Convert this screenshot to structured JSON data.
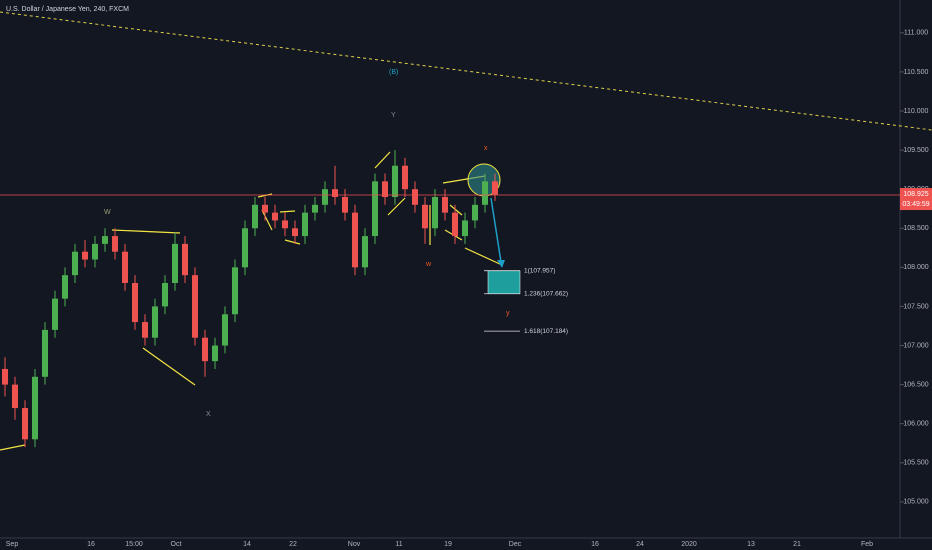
{
  "chart_data": {
    "type": "candlestick",
    "title": "U.S. Dollar / Japanese Yen, 240, FXCM",
    "open": [
      106.7,
      106.5,
      106.2,
      105.8,
      106.6,
      107.2,
      107.6,
      107.9,
      108.2,
      108.1,
      108.3,
      108.4,
      108.2,
      107.8,
      107.3,
      107.1,
      107.5,
      107.8,
      108.3,
      107.9,
      107.1,
      106.8,
      107.0,
      107.4,
      108.0,
      108.5,
      108.8,
      108.7,
      108.6,
      108.5,
      108.4,
      108.7,
      108.8,
      109.0,
      108.9,
      108.7,
      108.0,
      108.4,
      109.1,
      108.9,
      109.3,
      109.0,
      108.8,
      108.5,
      108.9,
      108.7,
      108.4,
      108.6,
      108.8,
      109.1
    ],
    "high": [
      106.85,
      106.6,
      106.3,
      106.7,
      107.3,
      107.7,
      108.0,
      108.3,
      108.35,
      108.4,
      108.5,
      108.5,
      108.3,
      107.9,
      107.4,
      107.6,
      107.9,
      108.45,
      108.4,
      108.0,
      107.2,
      107.1,
      107.5,
      108.1,
      108.6,
      108.9,
      108.9,
      108.8,
      108.7,
      108.6,
      108.8,
      108.9,
      109.1,
      109.3,
      109.0,
      108.8,
      108.5,
      109.2,
      109.2,
      109.5,
      109.4,
      109.1,
      108.9,
      109.0,
      109.0,
      108.8,
      108.7,
      108.9,
      109.2,
      109.2
    ],
    "low": [
      106.35,
      106.05,
      105.7,
      105.7,
      106.5,
      107.1,
      107.5,
      107.8,
      108.0,
      108.0,
      108.2,
      108.1,
      107.7,
      107.2,
      107.0,
      107.0,
      107.4,
      107.7,
      107.8,
      107.0,
      106.6,
      106.7,
      106.9,
      107.3,
      107.9,
      108.4,
      108.6,
      108.5,
      108.4,
      108.3,
      108.3,
      108.6,
      108.7,
      108.8,
      108.6,
      107.9,
      107.9,
      108.3,
      108.8,
      108.8,
      108.9,
      108.7,
      108.3,
      108.4,
      108.6,
      108.3,
      108.3,
      108.5,
      108.7,
      108.85
    ],
    "close": [
      106.5,
      106.2,
      105.8,
      106.6,
      107.2,
      107.6,
      107.9,
      108.2,
      108.1,
      108.3,
      108.4,
      108.2,
      107.8,
      107.3,
      107.1,
      107.5,
      107.8,
      108.3,
      107.9,
      107.1,
      106.8,
      107.0,
      107.4,
      108.0,
      108.5,
      108.8,
      108.7,
      108.6,
      108.5,
      108.4,
      108.7,
      108.8,
      109.0,
      108.9,
      108.7,
      108.0,
      108.4,
      109.1,
      108.9,
      109.3,
      109.0,
      108.8,
      108.5,
      108.9,
      108.7,
      108.4,
      108.6,
      108.8,
      109.1,
      108.93
    ],
    "up_color": "#4caf50",
    "down_color": "#ef5350",
    "ylim": [
      104.64,
      111.42
    ],
    "yticks": [
      {
        "value": 105,
        "label": "105.000"
      },
      {
        "value": 105.5,
        "label": "105.500"
      },
      {
        "value": 106,
        "label": "106.000"
      },
      {
        "value": 106.5,
        "label": "106.500"
      },
      {
        "value": 107,
        "label": "107.000"
      },
      {
        "value": 107.5,
        "label": "107.500"
      },
      {
        "value": 108,
        "label": "108.000"
      },
      {
        "value": 108.5,
        "label": "108.500"
      },
      {
        "value": 109,
        "label": "109.000"
      },
      {
        "value": 109.5,
        "label": "109.500"
      },
      {
        "value": 110,
        "label": "110.000"
      },
      {
        "value": 110.5,
        "label": "110.500"
      },
      {
        "value": 111,
        "label": "111.000"
      }
    ],
    "x_labels": [
      "Sep",
      "16",
      "15:00",
      "Oct",
      "14",
      "22",
      "Nov",
      "11",
      "19",
      "Dec",
      "16",
      "24",
      "2020",
      "13",
      "21",
      "Feb"
    ],
    "current_price": 108.925,
    "countdown": "03:49:59",
    "fib_levels": [
      {
        "value": 107.957,
        "label": "1(107.957)"
      },
      {
        "value": 107.662,
        "label": "1.236(107.662)"
      },
      {
        "value": 107.184,
        "label": "1.618(107.184)"
      }
    ],
    "annotations": [
      "W",
      "X",
      "Y",
      "(B)",
      "w",
      "x",
      "y"
    ]
  }
}
